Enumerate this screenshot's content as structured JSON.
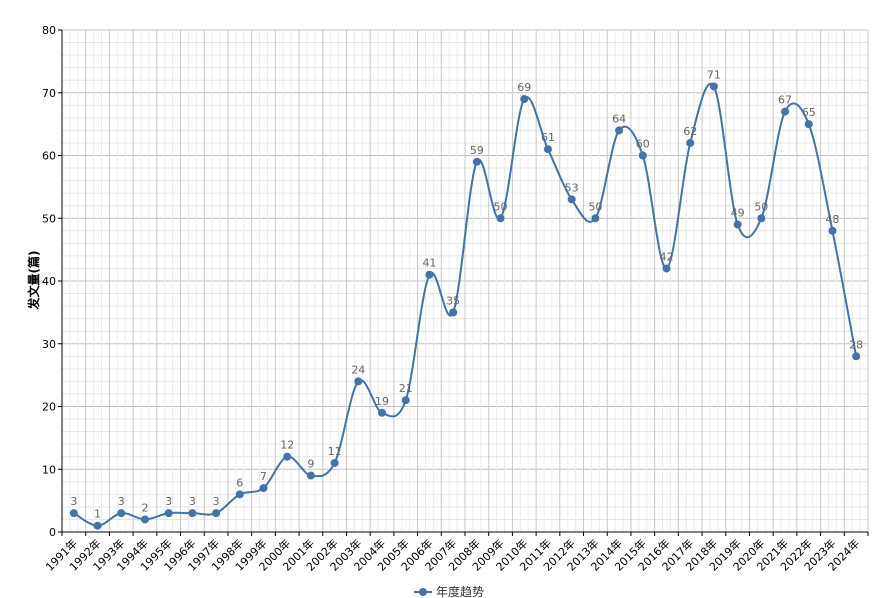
{
  "chart_data": {
    "type": "line",
    "ylabel": "发文量(篇)",
    "xlabel": "",
    "ylim": [
      0,
      80
    ],
    "yticks": [
      0,
      10,
      20,
      30,
      40,
      50,
      60,
      70,
      80
    ],
    "grid": true,
    "legend_position": "bottom-center",
    "categories": [
      "1991年",
      "1992年",
      "1993年",
      "1994年",
      "1995年",
      "1996年",
      "1997年",
      "1998年",
      "1999年",
      "2000年",
      "2001年",
      "2002年",
      "2003年",
      "2004年",
      "2005年",
      "2006年",
      "2007年",
      "2008年",
      "2009年",
      "2010年",
      "2011年",
      "2012年",
      "2013年",
      "2014年",
      "2015年",
      "2016年",
      "2017年",
      "2018年",
      "2019年",
      "2020年",
      "2021年",
      "2022年",
      "2023年",
      "2024年"
    ],
    "series": [
      {
        "name": "年度趋势",
        "color": "#4572A7",
        "values": [
          3,
          1,
          3,
          2,
          3,
          3,
          3,
          6,
          7,
          12,
          9,
          11,
          24,
          19,
          21,
          41,
          35,
          59,
          50,
          69,
          61,
          53,
          50,
          64,
          60,
          42,
          62,
          71,
          49,
          50,
          67,
          65,
          48,
          28
        ]
      }
    ]
  }
}
